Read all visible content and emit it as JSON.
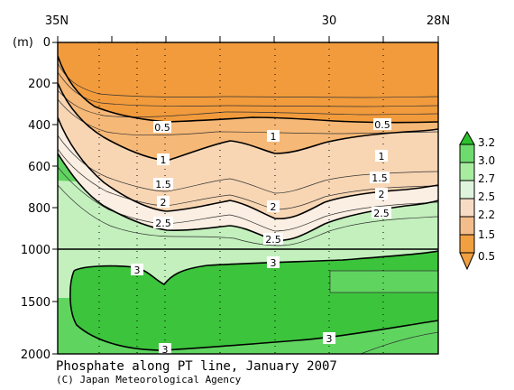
{
  "chart_data": {
    "type": "contour",
    "title": "Phosphate along PT line, January 2007",
    "credit": "(C) Japan Meteorological Agency",
    "ylabel": "(m)",
    "x_labels": [
      "35N",
      "30",
      "28N"
    ],
    "y_ticks": [
      0,
      200,
      400,
      600,
      800,
      1000,
      1500,
      2000
    ],
    "y_tick_labels": [
      "0",
      "200",
      "400",
      "600",
      "800",
      "1000",
      "1500",
      "2000"
    ],
    "colorbar": {
      "levels": [
        "3.2",
        "3.0",
        "2.7",
        "2.5",
        "2.2",
        "1.5",
        "0.5"
      ],
      "colors": [
        "#2cc12c",
        "#6edb6e",
        "#a8eca0",
        "#dff4dc",
        "#f7dbc4",
        "#f2bd8a",
        "#f0a040"
      ]
    },
    "contour_labels": [
      "0.5",
      "1",
      "1.5",
      "2",
      "2.5",
      "3"
    ],
    "colors": {
      "orange": "#f29b3c",
      "orange_mid": "#f6b877",
      "tan": "#f8d6b4",
      "pale": "#fbeee2",
      "lightgreen": "#c3f0bd",
      "green": "#5fd55f",
      "deepgreen": "#3cc43c"
    }
  }
}
